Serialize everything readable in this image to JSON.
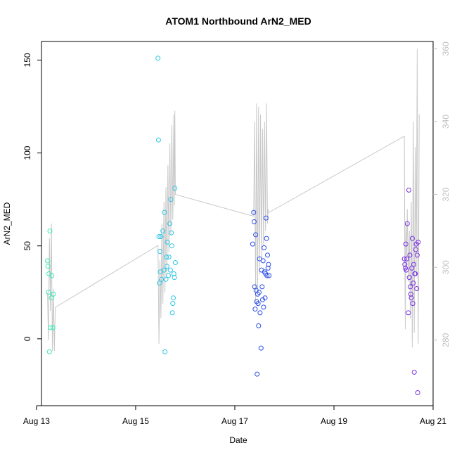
{
  "chart_data": {
    "type": "scatter",
    "title": "ATOM1 Northbound ArN2_MED",
    "xlabel": "Date",
    "ylabel": "ArN2_MED",
    "xlim": [
      13.1,
      21.0
    ],
    "ylim": [
      -36,
      160
    ],
    "y2lim": [
      262,
      362
    ],
    "x_ticks": [
      13,
      15,
      17,
      19,
      21
    ],
    "x_tick_labels": [
      "Aug 13",
      "Aug 15",
      "Aug 17",
      "Aug 19",
      "Aug 21"
    ],
    "y_ticks": [
      0,
      50,
      100,
      150
    ],
    "y_tick_labels": [
      "0",
      "50",
      "100",
      "150"
    ],
    "y2_ticks": [
      280,
      300,
      320,
      340,
      360
    ],
    "y2_tick_labels": [
      "280",
      "300",
      "320",
      "340",
      "360"
    ],
    "colors": {
      "line": "#c8c8c8",
      "axis": "#000000",
      "right_axis": "#bebebe",
      "group1": "#3de8b8",
      "group2": "#2cc6e6",
      "group3": "#2a4ee6",
      "group4": "#7a2ee6"
    },
    "series": [
      {
        "color": "#3de8b8",
        "points": [
          [
            13.22,
            42
          ],
          [
            13.23,
            39
          ],
          [
            13.24,
            25
          ],
          [
            13.25,
            35
          ],
          [
            13.26,
            -7
          ],
          [
            13.27,
            58
          ],
          [
            13.28,
            6
          ],
          [
            13.3,
            22
          ],
          [
            13.31,
            34
          ],
          [
            13.33,
            6
          ],
          [
            13.34,
            24
          ]
        ]
      },
      {
        "color": "#2cc6e6",
        "points": [
          [
            15.45,
            151
          ],
          [
            15.46,
            107
          ],
          [
            15.47,
            55
          ],
          [
            15.48,
            30
          ],
          [
            15.49,
            47
          ],
          [
            15.5,
            36
          ],
          [
            15.51,
            55
          ],
          [
            15.52,
            32
          ],
          [
            15.55,
            58
          ],
          [
            15.57,
            37
          ],
          [
            15.58,
            68
          ],
          [
            15.59,
            -7
          ],
          [
            15.61,
            32
          ],
          [
            15.62,
            44
          ],
          [
            15.63,
            39
          ],
          [
            15.64,
            52
          ],
          [
            15.66,
            34
          ],
          [
            15.67,
            44
          ],
          [
            15.69,
            62
          ],
          [
            15.7,
            37
          ],
          [
            15.71,
            75
          ],
          [
            15.72,
            57
          ],
          [
            15.73,
            50
          ],
          [
            15.74,
            14
          ],
          [
            15.75,
            19
          ],
          [
            15.76,
            22
          ],
          [
            15.77,
            35
          ],
          [
            15.78,
            33
          ],
          [
            15.79,
            81
          ],
          [
            15.8,
            41
          ]
        ]
      },
      {
        "color": "#2a4ee6",
        "points": [
          [
            17.36,
            51
          ],
          [
            17.38,
            68
          ],
          [
            17.39,
            63
          ],
          [
            17.4,
            28
          ],
          [
            17.41,
            16
          ],
          [
            17.42,
            56
          ],
          [
            17.43,
            26
          ],
          [
            17.44,
            20
          ],
          [
            17.45,
            -19
          ],
          [
            17.46,
            24
          ],
          [
            17.47,
            19
          ],
          [
            17.48,
            7
          ],
          [
            17.49,
            25
          ],
          [
            17.5,
            43
          ],
          [
            17.51,
            14
          ],
          [
            17.53,
            -5
          ],
          [
            17.54,
            37
          ],
          [
            17.55,
            28
          ],
          [
            17.56,
            21
          ],
          [
            17.57,
            42
          ],
          [
            17.58,
            17
          ],
          [
            17.59,
            49
          ],
          [
            17.6,
            36
          ],
          [
            17.61,
            22
          ],
          [
            17.62,
            35
          ],
          [
            17.63,
            65
          ],
          [
            17.64,
            54
          ],
          [
            17.65,
            34
          ],
          [
            17.66,
            45
          ],
          [
            17.67,
            38
          ],
          [
            17.68,
            40
          ],
          [
            17.69,
            34
          ]
        ]
      },
      {
        "color": "#7a2ee6",
        "points": [
          [
            20.42,
            43
          ],
          [
            20.43,
            40
          ],
          [
            20.44,
            38
          ],
          [
            20.45,
            51
          ],
          [
            20.46,
            37
          ],
          [
            20.47,
            43
          ],
          [
            20.48,
            62
          ],
          [
            20.5,
            14
          ],
          [
            20.51,
            80
          ],
          [
            20.52,
            33
          ],
          [
            20.53,
            45
          ],
          [
            20.54,
            28
          ],
          [
            20.55,
            24
          ],
          [
            20.56,
            22
          ],
          [
            20.57,
            38
          ],
          [
            20.58,
            54
          ],
          [
            20.59,
            19
          ],
          [
            20.6,
            30
          ],
          [
            20.61,
            40
          ],
          [
            20.62,
            -18
          ],
          [
            20.63,
            35
          ],
          [
            20.64,
            35
          ],
          [
            20.65,
            48
          ],
          [
            20.66,
            51
          ],
          [
            20.67,
            27
          ],
          [
            20.68,
            45
          ],
          [
            20.69,
            -29
          ],
          [
            20.7,
            52
          ]
        ]
      }
    ],
    "line": {
      "axis": "right",
      "points": [
        [
          13.22,
          293
        ],
        [
          13.24,
          280
        ],
        [
          13.26,
          308
        ],
        [
          13.28,
          288
        ],
        [
          13.3,
          312
        ],
        [
          13.32,
          277
        ],
        [
          13.34,
          294
        ],
        [
          13.36,
          277
        ],
        [
          13.38,
          289
        ],
        [
          15.45,
          306
        ],
        [
          15.47,
          279
        ],
        [
          15.49,
          302
        ],
        [
          15.51,
          286
        ],
        [
          15.53,
          312
        ],
        [
          15.55,
          290
        ],
        [
          15.57,
          318
        ],
        [
          15.59,
          293
        ],
        [
          15.61,
          322
        ],
        [
          15.63,
          298
        ],
        [
          15.65,
          328
        ],
        [
          15.67,
          304
        ],
        [
          15.69,
          334
        ],
        [
          15.71,
          309
        ],
        [
          15.73,
          339
        ],
        [
          15.75,
          313
        ],
        [
          15.77,
          342
        ],
        [
          15.78,
          317
        ],
        [
          15.79,
          343
        ],
        [
          15.8,
          320
        ],
        [
          17.38,
          314
        ],
        [
          17.4,
          340
        ],
        [
          17.42,
          290
        ],
        [
          17.44,
          345
        ],
        [
          17.46,
          294
        ],
        [
          17.48,
          344
        ],
        [
          17.5,
          298
        ],
        [
          17.52,
          342
        ],
        [
          17.54,
          302
        ],
        [
          17.56,
          338
        ],
        [
          17.58,
          306
        ],
        [
          17.6,
          340
        ],
        [
          17.62,
          310
        ],
        [
          17.64,
          345
        ],
        [
          17.66,
          312
        ],
        [
          17.67,
          316
        ],
        [
          17.68,
          315
        ],
        [
          20.42,
          336
        ],
        [
          20.43,
          300
        ],
        [
          20.44,
          283
        ],
        [
          20.45,
          312
        ],
        [
          20.46,
          300
        ],
        [
          20.48,
          316
        ],
        [
          20.5,
          296
        ],
        [
          20.52,
          310
        ],
        [
          20.54,
          286
        ],
        [
          20.56,
          318
        ],
        [
          20.58,
          278
        ],
        [
          20.6,
          340
        ],
        [
          20.62,
          282
        ],
        [
          20.64,
          333
        ],
        [
          20.66,
          298
        ],
        [
          20.68,
          360
        ],
        [
          20.7,
          279
        ],
        [
          20.72,
          342
        ]
      ]
    },
    "grid": false,
    "legend": "none"
  }
}
